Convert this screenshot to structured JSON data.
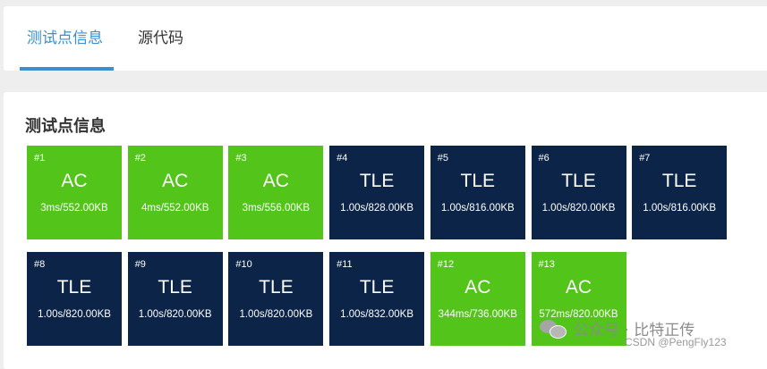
{
  "tabs": [
    {
      "label": "测试点信息",
      "active": true
    },
    {
      "label": "源代码",
      "active": false
    }
  ],
  "section": {
    "title": "测试点信息"
  },
  "testcases": [
    {
      "index": "#1",
      "status": "AC",
      "metrics": "3ms/552.00KB"
    },
    {
      "index": "#2",
      "status": "AC",
      "metrics": "4ms/552.00KB"
    },
    {
      "index": "#3",
      "status": "AC",
      "metrics": "3ms/556.00KB"
    },
    {
      "index": "#4",
      "status": "TLE",
      "metrics": "1.00s/828.00KB"
    },
    {
      "index": "#5",
      "status": "TLE",
      "metrics": "1.00s/816.00KB"
    },
    {
      "index": "#6",
      "status": "TLE",
      "metrics": "1.00s/820.00KB"
    },
    {
      "index": "#7",
      "status": "TLE",
      "metrics": "1.00s/816.00KB"
    },
    {
      "index": "#8",
      "status": "TLE",
      "metrics": "1.00s/820.00KB"
    },
    {
      "index": "#9",
      "status": "TLE",
      "metrics": "1.00s/820.00KB"
    },
    {
      "index": "#10",
      "status": "TLE",
      "metrics": "1.00s/820.00KB"
    },
    {
      "index": "#11",
      "status": "TLE",
      "metrics": "1.00s/832.00KB"
    },
    {
      "index": "#12",
      "status": "AC",
      "metrics": "344ms/736.00KB"
    },
    {
      "index": "#13",
      "status": "AC",
      "metrics": "572ms/820.00KB"
    }
  ],
  "colors": {
    "ac": "#52c41a",
    "tle": "#0b2447",
    "tab_active": "#3a8fd0"
  },
  "watermark": {
    "text": "公众号 · 比特正传",
    "icon": "wechat-icon"
  },
  "csdn": {
    "text": "CSDN @PengFly123"
  }
}
